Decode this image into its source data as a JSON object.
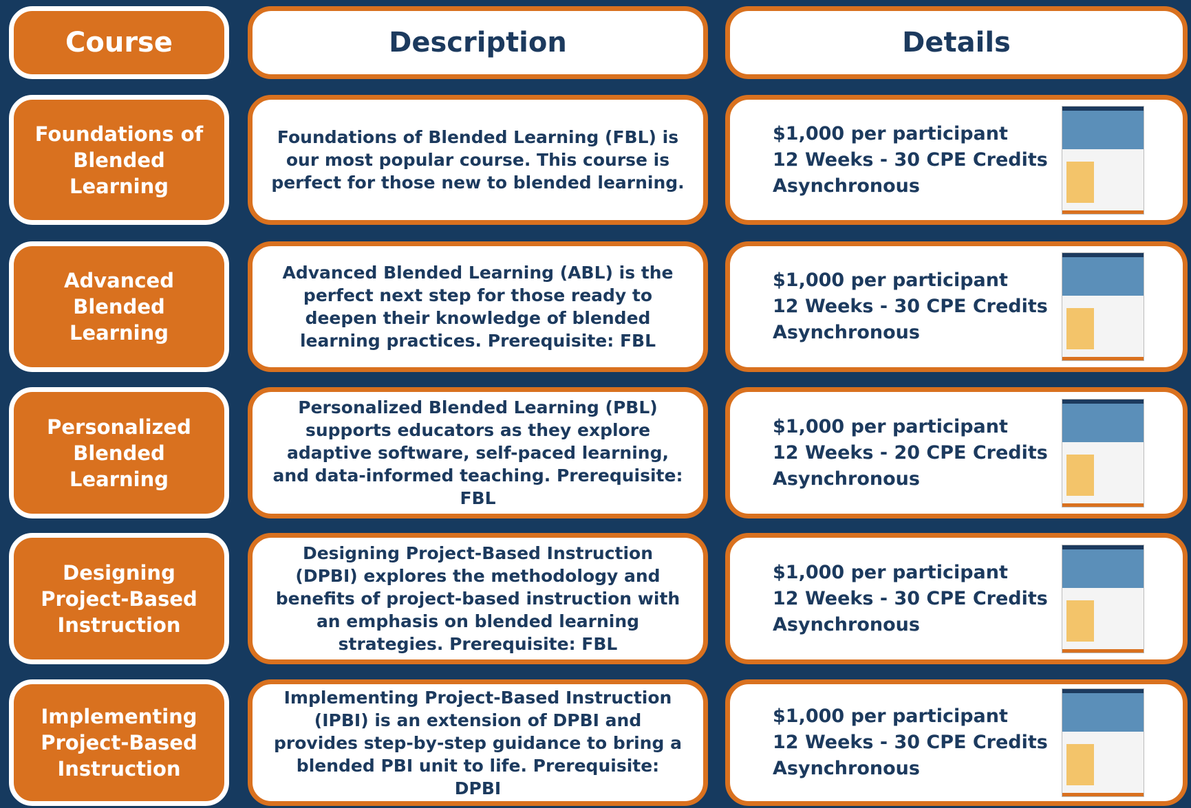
{
  "header": {
    "course": "Course",
    "description": "Description",
    "details": "Details"
  },
  "rows": [
    {
      "course": "Foundations of Blended Learning",
      "description": "Foundations of Blended Learning (FBL) is our most popular course. This course is perfect for those new to blended learning.",
      "details": [
        "$1,000 per participant",
        "12 Weeks - 30 CPE Credits",
        "Asynchronous"
      ]
    },
    {
      "course": "Advanced Blended Learning",
      "description": "Advanced Blended Learning (ABL) is the perfect next step for those ready to deepen their knowledge of blended learning practices. Prerequisite: FBL",
      "details": [
        "$1,000 per participant",
        "12 Weeks - 30 CPE Credits",
        "Asynchronous"
      ]
    },
    {
      "course": "Personalized Blended Learning",
      "description": "Personalized Blended Learning (PBL) supports educators as they explore adaptive software, self-paced learning, and data-informed teaching. Prerequisite: FBL",
      "details": [
        "$1,000 per participant",
        "12 Weeks - 20 CPE Credits",
        "Asynchronous"
      ]
    },
    {
      "course": "Designing Project-Based Instruction",
      "description": "Designing Project-Based Instruction (DPBI) explores the methodology and benefits of project-based instruction with an emphasis on blended learning strategies. Prerequisite: FBL",
      "details": [
        "$1,000 per participant",
        "12 Weeks - 30 CPE Credits",
        "Asynchronous"
      ]
    },
    {
      "course": "Implementing Project-Based Instruction",
      "description": "Implementing Project-Based Instruction (IPBI) is an extension of DPBI and provides step-by-step guidance to bring a blended PBI unit to life. Prerequisite: DPBI",
      "details": [
        "$1,000 per participant",
        "12 Weeks - 30 CPE Credits",
        "Asynchronous"
      ]
    }
  ]
}
